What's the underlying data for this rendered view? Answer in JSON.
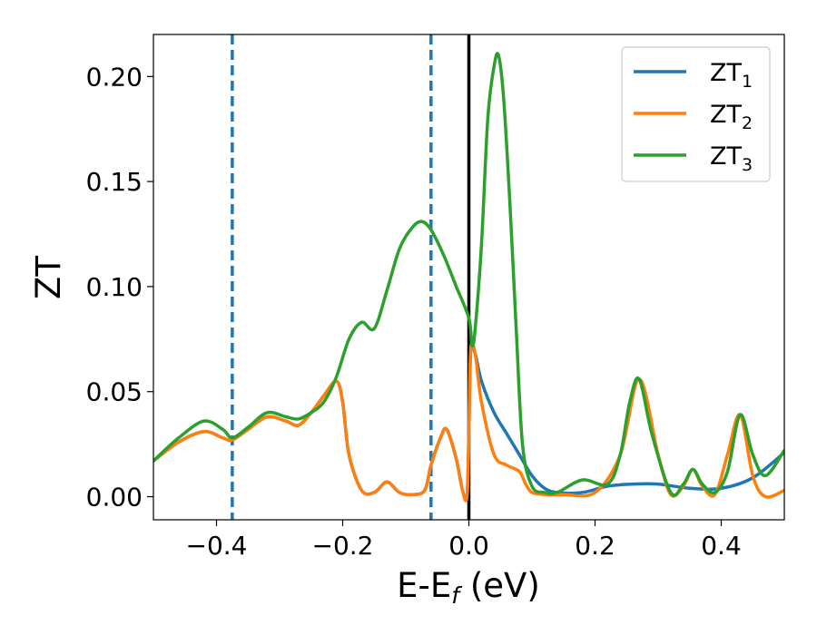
{
  "chart_data": {
    "type": "line",
    "title": "",
    "xlabel": {
      "main": "E-E",
      "sub": "f",
      "unit": " (eV)"
    },
    "ylabel": "ZT",
    "xlim": [
      -0.5,
      0.5
    ],
    "ylim": [
      -0.011,
      0.22
    ],
    "x_ticks": [
      -0.4,
      -0.2,
      0.0,
      0.2,
      0.4
    ],
    "x_tick_labels": [
      "−0.4",
      "−0.2",
      "0.0",
      "0.2",
      "0.4"
    ],
    "y_ticks": [
      0.0,
      0.05,
      0.1,
      0.15,
      0.2
    ],
    "y_tick_labels": [
      "0.00",
      "0.05",
      "0.10",
      "0.15",
      "0.20"
    ],
    "grid": false,
    "legend_position": "top-right",
    "vlines": [
      {
        "x": -0.375,
        "style": "dashed",
        "color": "#1f77b4"
      },
      {
        "x": -0.06,
        "style": "dashed",
        "color": "#1f77b4"
      },
      {
        "x": 0.0,
        "style": "solid",
        "color": "#000000"
      }
    ],
    "series": [
      {
        "name": "ZT1",
        "label_main": "ZT",
        "label_sub": "1",
        "color": "#1f77b4",
        "x": [
          -0.5,
          -0.46,
          -0.42,
          -0.39,
          -0.375,
          -0.35,
          -0.32,
          -0.29,
          -0.27,
          -0.25,
          -0.23,
          -0.21,
          -0.2,
          -0.19,
          -0.17,
          -0.15,
          -0.13,
          -0.11,
          -0.09,
          -0.07,
          -0.06,
          -0.045,
          -0.035,
          -0.02,
          -0.01,
          -0.003,
          0.0,
          0.003,
          0.01,
          0.02,
          0.04,
          0.06,
          0.08,
          0.1,
          0.12,
          0.14,
          0.18,
          0.22,
          0.26,
          0.3,
          0.35,
          0.4,
          0.45,
          0.5
        ],
        "y": [
          0.017,
          0.026,
          0.031,
          0.028,
          0.027,
          0.032,
          0.038,
          0.036,
          0.034,
          0.04,
          0.048,
          0.055,
          0.045,
          0.02,
          0.003,
          0.002,
          0.007,
          0.002,
          0.001,
          0.003,
          0.015,
          0.028,
          0.032,
          0.018,
          0.003,
          0.0,
          0.03,
          0.07,
          0.068,
          0.055,
          0.04,
          0.03,
          0.02,
          0.01,
          0.004,
          0.002,
          0.002,
          0.005,
          0.006,
          0.006,
          0.004,
          0.004,
          0.009,
          0.021
        ]
      },
      {
        "name": "ZT2",
        "label_main": "ZT",
        "label_sub": "2",
        "color": "#ff7f0e",
        "x": [
          -0.5,
          -0.46,
          -0.42,
          -0.39,
          -0.375,
          -0.35,
          -0.32,
          -0.29,
          -0.27,
          -0.25,
          -0.23,
          -0.21,
          -0.2,
          -0.19,
          -0.17,
          -0.15,
          -0.13,
          -0.11,
          -0.09,
          -0.07,
          -0.06,
          -0.045,
          -0.035,
          -0.02,
          -0.01,
          -0.003,
          0.0,
          0.003,
          0.01,
          0.02,
          0.04,
          0.06,
          0.08,
          0.09,
          0.1,
          0.12,
          0.15,
          0.2,
          0.24,
          0.27,
          0.3,
          0.32,
          0.34,
          0.355,
          0.37,
          0.39,
          0.41,
          0.43,
          0.45,
          0.47,
          0.5
        ],
        "y": [
          0.017,
          0.026,
          0.031,
          0.028,
          0.027,
          0.032,
          0.038,
          0.036,
          0.034,
          0.04,
          0.048,
          0.055,
          0.045,
          0.02,
          0.003,
          0.002,
          0.007,
          0.002,
          0.001,
          0.003,
          0.015,
          0.028,
          0.032,
          0.018,
          0.003,
          0.0,
          0.03,
          0.07,
          0.068,
          0.045,
          0.02,
          0.015,
          0.012,
          0.006,
          0.002,
          0.001,
          0.001,
          0.002,
          0.02,
          0.056,
          0.02,
          0.001,
          0.005,
          0.013,
          0.005,
          0.001,
          0.02,
          0.039,
          0.01,
          0.0,
          0.003
        ]
      },
      {
        "name": "ZT3",
        "label_main": "ZT",
        "label_sub": "3",
        "color": "#2ca02c",
        "x": [
          -0.5,
          -0.46,
          -0.42,
          -0.39,
          -0.375,
          -0.35,
          -0.32,
          -0.29,
          -0.27,
          -0.25,
          -0.23,
          -0.21,
          -0.19,
          -0.17,
          -0.15,
          -0.13,
          -0.11,
          -0.09,
          -0.075,
          -0.06,
          -0.04,
          -0.02,
          0.0,
          0.005,
          0.01,
          0.02,
          0.03,
          0.04,
          0.047,
          0.055,
          0.065,
          0.075,
          0.085,
          0.1,
          0.12,
          0.14,
          0.18,
          0.22,
          0.24,
          0.255,
          0.27,
          0.29,
          0.32,
          0.34,
          0.355,
          0.37,
          0.39,
          0.41,
          0.43,
          0.45,
          0.47,
          0.5
        ],
        "y": [
          0.017,
          0.028,
          0.036,
          0.032,
          0.028,
          0.033,
          0.04,
          0.038,
          0.037,
          0.04,
          0.045,
          0.057,
          0.075,
          0.083,
          0.08,
          0.098,
          0.118,
          0.128,
          0.131,
          0.127,
          0.115,
          0.1,
          0.085,
          0.072,
          0.08,
          0.12,
          0.18,
          0.205,
          0.21,
          0.19,
          0.14,
          0.08,
          0.025,
          0.005,
          0.002,
          0.002,
          0.008,
          0.006,
          0.02,
          0.045,
          0.056,
          0.03,
          0.002,
          0.006,
          0.013,
          0.006,
          0.002,
          0.012,
          0.039,
          0.02,
          0.01,
          0.022
        ]
      }
    ]
  }
}
